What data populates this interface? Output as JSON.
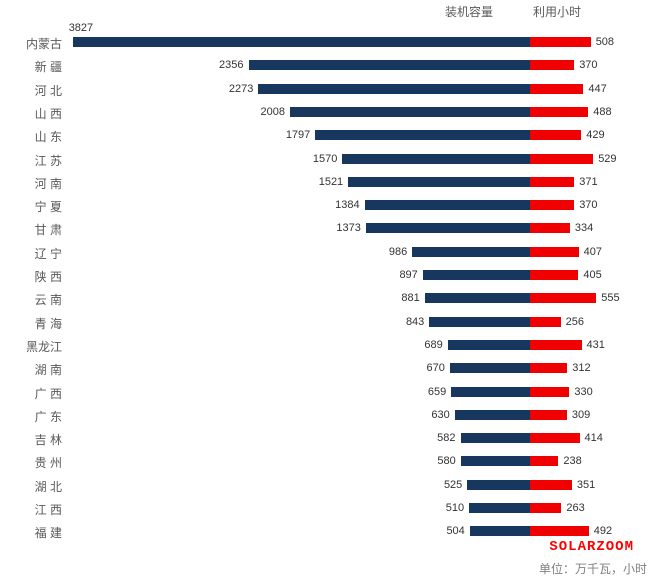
{
  "header": {
    "capacity_label": "装机容量",
    "hours_label": "利用小时"
  },
  "watermark": "SOLARZOOM",
  "footer": {
    "unit_note": "单位：万千瓦，小时"
  },
  "colors": {
    "capacity_bar": "#17375E",
    "hours_bar": "#F00000",
    "category_text": "#595959",
    "value_text": "#333333",
    "watermark_text": "#FF0000",
    "footer_text": "#808080"
  },
  "chart_data": {
    "type": "bar",
    "subtype": "diverging-horizontal-butterfly",
    "title": "",
    "legend_position": "top",
    "data_labels": true,
    "grid": false,
    "unit_note": "单位：万千瓦，小时",
    "categories": [
      "内蒙古",
      "新 疆",
      "河 北",
      "山 西",
      "山 东",
      "江 苏",
      "河 南",
      "宁 夏",
      "甘 肃",
      "辽 宁",
      "陕 西",
      "云 南",
      "青 海",
      "黑龙江",
      "湖 南",
      "广 西",
      "广 东",
      "吉 林",
      "贵 州",
      "湖 北",
      "江 西",
      "福 建"
    ],
    "series": [
      {
        "name": "装机容量",
        "side": "left",
        "color": "#17375E",
        "values": [
          3827,
          2356,
          2273,
          2008,
          1797,
          1570,
          1521,
          1384,
          1373,
          986,
          897,
          881,
          843,
          689,
          670,
          659,
          630,
          582,
          580,
          525,
          510,
          504
        ]
      },
      {
        "name": "利用小时",
        "side": "right",
        "color": "#F00000",
        "values": [
          508,
          370,
          447,
          488,
          429,
          529,
          371,
          370,
          334,
          407,
          405,
          555,
          256,
          431,
          312,
          330,
          309,
          414,
          238,
          351,
          263,
          492
        ]
      }
    ]
  }
}
